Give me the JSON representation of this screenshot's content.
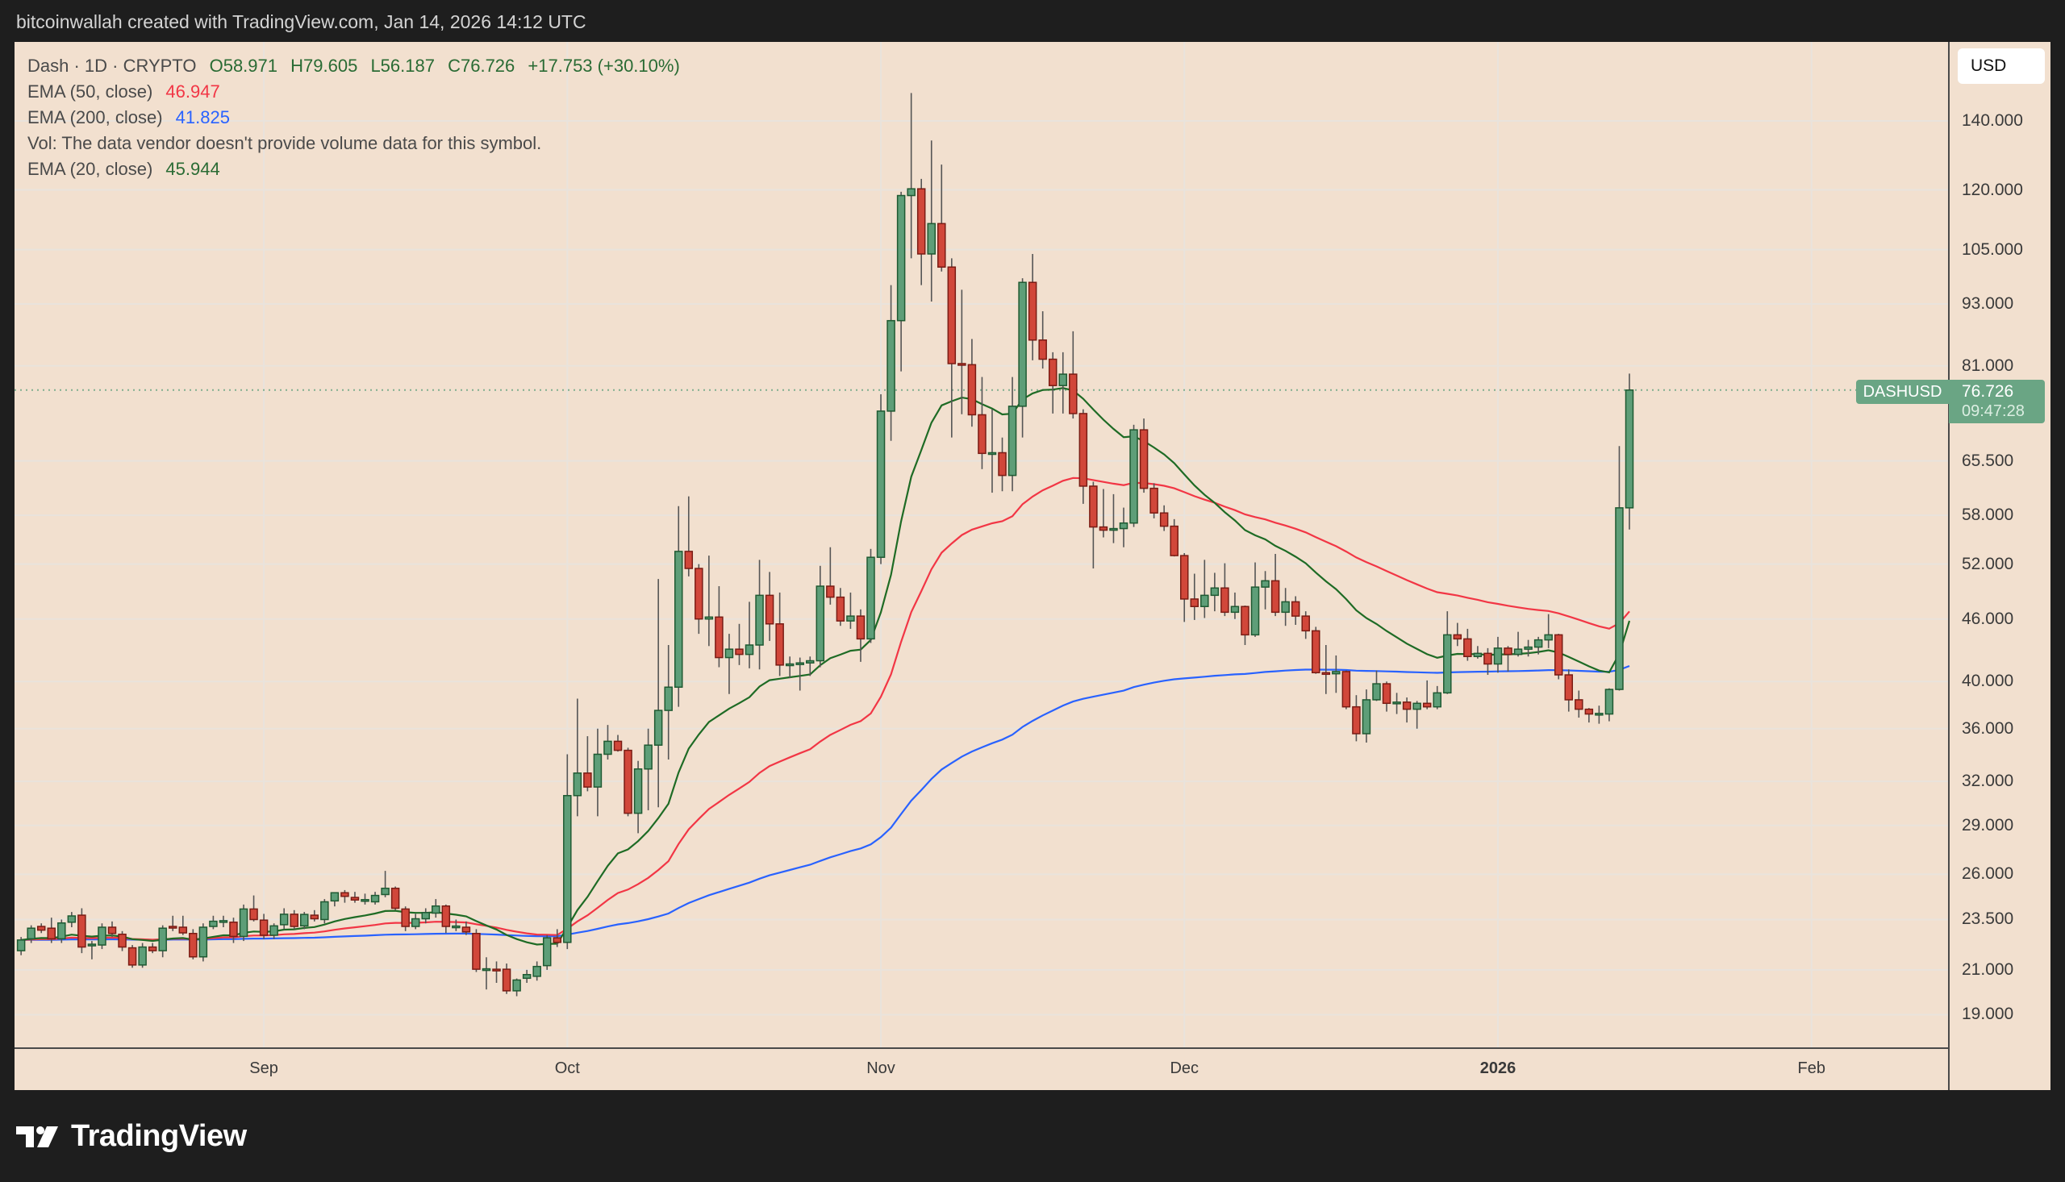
{
  "header": {
    "credit": "bitcoinwallah created with TradingView.com, Jan 14, 2026 14:12 UTC"
  },
  "legend": {
    "symbol": "Dash · 1D · CRYPTO",
    "open": "O58.971",
    "high": "H79.605",
    "low": "L56.187",
    "close": "C76.726",
    "change": "+17.753 (+30.10%)",
    "ema50_label": "EMA (50, close)",
    "ema50_value": "46.947",
    "ema200_label": "EMA (200, close)",
    "ema200_value": "41.825",
    "vol_note": "Vol: The data vendor doesn't provide volume data for this symbol.",
    "ema20_label": "EMA (20, close)",
    "ema20_value": "45.944"
  },
  "currency_button": "USD",
  "last_price": {
    "symbol": "DASHUSD",
    "price": "76.726",
    "countdown": "09:47:28",
    "value": 76.726,
    "color": "#6aa584"
  },
  "brand": {
    "logo_text": "TradingView"
  },
  "chart_data": {
    "type": "candlestick",
    "y_scale": "log",
    "ylim": [
      18,
      160
    ],
    "grid": true,
    "colors": {
      "up_body": "#5e9e78",
      "up_border": "#1f5a32",
      "down_body": "#d1473a",
      "down_border": "#7a1c14",
      "wick": "#555555",
      "background": "#f2e0cf"
    },
    "price_ticks": [
      "140.000",
      "120.000",
      "105.000",
      "93.000",
      "81.000",
      "65.500",
      "58.000",
      "52.000",
      "46.000",
      "40.000",
      "36.000",
      "32.000",
      "29.000",
      "26.000",
      "23.500",
      "21.000",
      "19.000"
    ],
    "time_ticks": [
      {
        "label": "Sep",
        "date": "2025-09-01",
        "bold": false
      },
      {
        "label": "Oct",
        "date": "2025-10-01",
        "bold": false
      },
      {
        "label": "Nov",
        "date": "2025-11-01",
        "bold": false
      },
      {
        "label": "Dec",
        "date": "2025-12-01",
        "bold": false
      },
      {
        "label": "2026",
        "date": "2026-01-01",
        "bold": true
      },
      {
        "label": "Feb",
        "date": "2026-02-01",
        "bold": false
      }
    ],
    "indicators": [
      {
        "name": "EMA (20, close)",
        "period": 20,
        "color": "#1e6b25",
        "last_value": 45.944
      },
      {
        "name": "EMA (50, close)",
        "period": 50,
        "color": "#f23645",
        "last_value": 46.947
      },
      {
        "name": "EMA (200, close)",
        "period": 200,
        "color": "#2962ff",
        "last_value": 41.825
      }
    ],
    "candles_columns": [
      "date",
      "open",
      "high",
      "low",
      "close"
    ],
    "candles": [
      [
        "2025-08-08",
        21.92,
        22.6,
        21.7,
        22.45
      ],
      [
        "2025-08-09",
        22.51,
        23.2,
        22.3,
        23.05
      ],
      [
        "2025-08-10",
        23.14,
        23.3,
        22.8,
        22.95
      ],
      [
        "2025-08-11",
        23.05,
        23.6,
        22.3,
        22.51
      ],
      [
        "2025-08-12",
        22.51,
        23.5,
        22.3,
        23.32
      ],
      [
        "2025-08-13",
        23.36,
        23.9,
        23.1,
        23.69
      ],
      [
        "2025-08-14",
        23.73,
        24.1,
        21.8,
        22.1
      ],
      [
        "2025-08-15",
        22.2,
        22.4,
        21.5,
        22.24
      ],
      [
        "2025-08-16",
        22.2,
        23.3,
        22.0,
        23.1
      ],
      [
        "2025-08-17",
        23.1,
        23.4,
        22.6,
        22.78
      ],
      [
        "2025-08-18",
        22.74,
        22.9,
        21.9,
        22.1
      ],
      [
        "2025-08-19",
        22.06,
        22.2,
        21.1,
        21.23
      ],
      [
        "2025-08-20",
        21.23,
        22.3,
        21.1,
        22.1
      ],
      [
        "2025-08-21",
        22.1,
        22.3,
        21.8,
        21.92
      ],
      [
        "2025-08-22",
        21.92,
        23.2,
        21.6,
        23.05
      ],
      [
        "2025-08-23",
        23.14,
        23.7,
        22.9,
        23.1
      ],
      [
        "2025-08-24",
        23.1,
        23.7,
        22.7,
        22.81
      ],
      [
        "2025-08-25",
        22.78,
        23.0,
        21.5,
        21.62
      ],
      [
        "2025-08-26",
        21.62,
        23.3,
        21.4,
        23.1
      ],
      [
        "2025-08-27",
        23.14,
        23.7,
        23.0,
        23.41
      ],
      [
        "2025-08-28",
        23.41,
        23.7,
        23.1,
        23.44
      ],
      [
        "2025-08-29",
        23.36,
        23.6,
        22.3,
        22.63
      ],
      [
        "2025-08-30",
        22.63,
        24.3,
        22.4,
        24.06
      ],
      [
        "2025-08-31",
        24.06,
        24.8,
        23.4,
        23.5
      ],
      [
        "2025-09-01",
        23.47,
        23.8,
        22.5,
        22.69
      ],
      [
        "2025-09-02",
        22.69,
        23.3,
        22.5,
        23.17
      ],
      [
        "2025-09-03",
        23.23,
        24.1,
        23.0,
        23.78
      ],
      [
        "2025-09-04",
        23.78,
        24.0,
        23.0,
        23.14
      ],
      [
        "2025-09-05",
        23.17,
        23.9,
        23.0,
        23.77
      ],
      [
        "2025-09-06",
        23.73,
        24.0,
        23.4,
        23.54
      ],
      [
        "2025-09-07",
        23.5,
        24.6,
        23.3,
        24.45
      ],
      [
        "2025-09-08",
        24.5,
        24.9,
        24.2,
        24.95
      ],
      [
        "2025-09-09",
        24.95,
        25.1,
        24.4,
        24.75
      ],
      [
        "2025-09-10",
        24.69,
        25.0,
        24.4,
        24.55
      ],
      [
        "2025-09-11",
        24.55,
        24.9,
        24.3,
        24.57
      ],
      [
        "2025-09-12",
        24.45,
        25.0,
        24.3,
        24.8
      ],
      [
        "2025-09-13",
        24.85,
        26.2,
        24.7,
        25.2
      ],
      [
        "2025-09-14",
        25.2,
        25.3,
        24.0,
        24.1
      ],
      [
        "2025-09-15",
        24.06,
        24.2,
        22.9,
        23.14
      ],
      [
        "2025-09-16",
        23.14,
        23.8,
        23.0,
        23.54
      ],
      [
        "2025-09-17",
        23.54,
        24.1,
        23.3,
        23.87
      ],
      [
        "2025-09-18",
        23.84,
        24.6,
        23.6,
        24.22
      ],
      [
        "2025-09-19",
        24.22,
        24.3,
        22.8,
        23.14
      ],
      [
        "2025-09-20",
        23.14,
        23.5,
        22.9,
        23.16
      ],
      [
        "2025-09-21",
        23.1,
        23.4,
        22.7,
        22.86
      ],
      [
        "2025-09-22",
        22.78,
        23.0,
        20.9,
        21.03
      ],
      [
        "2025-09-23",
        21.03,
        21.6,
        20.1,
        21.05
      ],
      [
        "2025-09-24",
        21.03,
        21.4,
        20.4,
        21.0
      ],
      [
        "2025-09-25",
        21.03,
        21.3,
        19.9,
        20.04
      ],
      [
        "2025-09-26",
        20.04,
        20.6,
        19.8,
        20.53
      ],
      [
        "2025-09-27",
        20.61,
        21.0,
        20.4,
        20.78
      ],
      [
        "2025-09-28",
        20.7,
        21.4,
        20.5,
        21.16
      ],
      [
        "2025-09-29",
        21.2,
        22.7,
        21.0,
        22.56
      ],
      [
        "2025-09-30",
        22.56,
        23.0,
        22.1,
        22.33
      ],
      [
        "2025-10-01",
        22.33,
        34.0,
        22.0,
        31.0
      ],
      [
        "2025-10-02",
        31.0,
        38.5,
        29.6,
        32.6
      ],
      [
        "2025-10-03",
        32.6,
        35.4,
        31.3,
        31.6
      ],
      [
        "2025-10-04",
        31.6,
        36.0,
        29.6,
        34.0
      ],
      [
        "2025-10-05",
        34.0,
        36.3,
        33.6,
        35.0
      ],
      [
        "2025-10-06",
        35.0,
        35.5,
        34.2,
        34.3
      ],
      [
        "2025-10-07",
        34.3,
        34.5,
        29.6,
        29.8
      ],
      [
        "2025-10-08",
        29.8,
        33.5,
        28.5,
        32.9
      ],
      [
        "2025-10-09",
        32.9,
        36.0,
        30.0,
        34.7
      ],
      [
        "2025-10-10",
        34.7,
        50.3,
        30.2,
        37.5
      ],
      [
        "2025-10-11",
        37.5,
        43.4,
        33.6,
        39.5
      ],
      [
        "2025-10-12",
        39.5,
        59.2,
        37.8,
        53.5
      ],
      [
        "2025-10-13",
        53.5,
        60.5,
        50.6,
        51.5
      ],
      [
        "2025-10-14",
        51.5,
        52.0,
        44.5,
        46.0
      ],
      [
        "2025-10-15",
        46.0,
        53.0,
        43.3,
        46.2
      ],
      [
        "2025-10-16",
        46.2,
        49.5,
        41.3,
        42.2
      ],
      [
        "2025-10-17",
        42.2,
        44.5,
        38.9,
        43.0
      ],
      [
        "2025-10-18",
        43.0,
        45.5,
        41.5,
        42.5
      ],
      [
        "2025-10-19",
        42.5,
        47.8,
        41.2,
        43.4
      ],
      [
        "2025-10-20",
        43.4,
        52.5,
        41.1,
        48.5
      ],
      [
        "2025-10-21",
        48.5,
        51.1,
        43.8,
        45.5
      ],
      [
        "2025-10-22",
        45.5,
        48.8,
        40.5,
        41.5
      ],
      [
        "2025-10-23",
        41.5,
        42.3,
        40.3,
        41.6
      ],
      [
        "2025-10-24",
        41.6,
        42.2,
        39.2,
        41.7
      ],
      [
        "2025-10-25",
        41.7,
        42.3,
        40.5,
        41.9
      ],
      [
        "2025-10-26",
        41.9,
        51.8,
        41.3,
        49.5
      ],
      [
        "2025-10-27",
        49.5,
        54.0,
        47.5,
        48.3
      ],
      [
        "2025-10-28",
        48.3,
        49.3,
        45.3,
        45.8
      ],
      [
        "2025-10-29",
        45.8,
        48.8,
        45.0,
        46.3
      ],
      [
        "2025-10-30",
        46.3,
        47.0,
        41.8,
        44.0
      ],
      [
        "2025-10-31",
        44.0,
        53.8,
        43.6,
        52.8
      ],
      [
        "2025-11-01",
        52.8,
        76.0,
        52.0,
        73.2
      ],
      [
        "2025-11-02",
        73.2,
        97.0,
        68.5,
        89.6
      ],
      [
        "2025-11-03",
        89.6,
        119.5,
        80.0,
        118.5
      ],
      [
        "2025-11-04",
        118.5,
        149.0,
        103.0,
        120.3
      ],
      [
        "2025-11-05",
        120.3,
        123.0,
        97.0,
        104.0
      ],
      [
        "2025-11-06",
        104.0,
        134.0,
        93.5,
        111.3
      ],
      [
        "2025-11-07",
        111.3,
        127.0,
        100.0,
        101.0
      ],
      [
        "2025-11-08",
        101.0,
        103.0,
        69.0,
        81.4
      ],
      [
        "2025-11-09",
        81.4,
        96.0,
        72.7,
        81.2
      ],
      [
        "2025-11-10",
        81.2,
        86.0,
        70.7,
        72.6
      ],
      [
        "2025-11-11",
        72.6,
        79.0,
        64.3,
        66.6
      ],
      [
        "2025-11-12",
        66.6,
        73.5,
        61.0,
        66.7
      ],
      [
        "2025-11-13",
        66.7,
        69.0,
        61.2,
        63.4
      ],
      [
        "2025-11-14",
        63.4,
        79.0,
        61.2,
        74.0
      ],
      [
        "2025-11-15",
        74.0,
        98.5,
        69.0,
        97.6
      ],
      [
        "2025-11-16",
        97.6,
        104.0,
        82.0,
        85.8
      ],
      [
        "2025-11-17",
        85.8,
        91.5,
        80.5,
        82.2
      ],
      [
        "2025-11-18",
        82.2,
        83.5,
        72.8,
        77.5
      ],
      [
        "2025-11-19",
        77.5,
        83.5,
        72.8,
        79.5
      ],
      [
        "2025-11-20",
        79.5,
        87.5,
        72.0,
        72.8
      ],
      [
        "2025-11-21",
        72.8,
        73.5,
        59.5,
        61.9
      ],
      [
        "2025-11-22",
        61.9,
        62.5,
        51.5,
        56.5
      ],
      [
        "2025-11-23",
        56.5,
        61.5,
        55.2,
        56.1
      ],
      [
        "2025-11-24",
        56.1,
        60.8,
        54.5,
        56.3
      ],
      [
        "2025-11-25",
        56.3,
        59.0,
        54.0,
        57.0
      ],
      [
        "2025-11-26",
        57.0,
        71.0,
        56.5,
        70.2
      ],
      [
        "2025-11-27",
        70.2,
        72.0,
        61.0,
        61.6
      ],
      [
        "2025-11-28",
        61.6,
        62.3,
        57.6,
        58.3
      ],
      [
        "2025-11-29",
        58.3,
        59.3,
        56.0,
        56.6
      ],
      [
        "2025-11-30",
        56.6,
        57.5,
        52.9,
        53.0
      ],
      [
        "2025-12-01",
        53.0,
        53.3,
        45.7,
        48.1
      ],
      [
        "2025-12-02",
        48.1,
        50.9,
        45.9,
        47.3
      ],
      [
        "2025-12-03",
        47.3,
        52.5,
        46.1,
        48.5
      ],
      [
        "2025-12-04",
        48.5,
        51.0,
        46.8,
        49.3
      ],
      [
        "2025-12-05",
        49.3,
        52.1,
        46.3,
        46.7
      ],
      [
        "2025-12-06",
        46.7,
        48.8,
        46.0,
        47.3
      ],
      [
        "2025-12-07",
        47.3,
        47.4,
        43.4,
        44.4
      ],
      [
        "2025-12-08",
        44.4,
        52.2,
        44.2,
        49.4
      ],
      [
        "2025-12-09",
        49.4,
        51.2,
        47.0,
        50.1
      ],
      [
        "2025-12-10",
        50.1,
        53.2,
        46.3,
        46.7
      ],
      [
        "2025-12-11",
        46.7,
        49.3,
        45.3,
        47.8
      ],
      [
        "2025-12-12",
        47.8,
        48.4,
        45.4,
        46.3
      ],
      [
        "2025-12-13",
        46.3,
        46.8,
        44.0,
        44.8
      ],
      [
        "2025-12-14",
        44.8,
        45.2,
        40.7,
        40.8
      ],
      [
        "2025-12-15",
        40.8,
        43.4,
        38.9,
        40.7
      ],
      [
        "2025-12-16",
        40.7,
        42.4,
        39.0,
        40.9
      ],
      [
        "2025-12-17",
        40.9,
        41.0,
        37.6,
        37.8
      ],
      [
        "2025-12-18",
        37.8,
        38.8,
        35.0,
        35.6
      ],
      [
        "2025-12-19",
        35.6,
        39.3,
        34.9,
        38.4
      ],
      [
        "2025-12-20",
        38.4,
        41.0,
        38.3,
        39.8
      ],
      [
        "2025-12-21",
        39.8,
        40.0,
        37.4,
        38.1
      ],
      [
        "2025-12-22",
        38.1,
        39.0,
        37.2,
        38.2
      ],
      [
        "2025-12-23",
        38.2,
        38.6,
        36.5,
        37.6
      ],
      [
        "2025-12-24",
        37.6,
        38.3,
        36.0,
        38.1
      ],
      [
        "2025-12-25",
        38.1,
        40.1,
        37.6,
        37.8
      ],
      [
        "2025-12-26",
        37.8,
        39.6,
        37.6,
        39.0
      ],
      [
        "2025-12-27",
        39.0,
        46.8,
        38.9,
        44.4
      ],
      [
        "2025-12-28",
        44.4,
        45.6,
        43.3,
        44.0
      ],
      [
        "2025-12-29",
        44.0,
        45.0,
        41.9,
        42.3
      ],
      [
        "2025-12-30",
        42.3,
        43.3,
        42.1,
        42.6
      ],
      [
        "2025-12-31",
        42.6,
        43.1,
        40.6,
        41.6
      ],
      [
        "2026-01-01",
        41.6,
        44.2,
        40.8,
        43.1
      ],
      [
        "2026-01-02",
        43.1,
        43.3,
        40.9,
        42.5
      ],
      [
        "2026-01-03",
        42.5,
        44.7,
        42.3,
        43.0
      ],
      [
        "2026-01-04",
        43.0,
        43.9,
        42.3,
        43.2
      ],
      [
        "2026-01-05",
        43.2,
        44.2,
        42.5,
        43.9
      ],
      [
        "2026-01-06",
        43.9,
        46.5,
        43.1,
        44.4
      ],
      [
        "2026-01-07",
        44.4,
        44.5,
        40.2,
        40.6
      ],
      [
        "2026-01-08",
        40.6,
        41.1,
        37.4,
        38.4
      ],
      [
        "2026-01-09",
        38.4,
        39.2,
        36.9,
        37.6
      ],
      [
        "2026-01-10",
        37.6,
        37.7,
        36.5,
        37.2
      ],
      [
        "2026-01-11",
        37.2,
        37.9,
        36.4,
        37.25
      ],
      [
        "2026-01-12",
        37.2,
        39.4,
        36.6,
        39.3
      ],
      [
        "2026-01-13",
        39.3,
        67.7,
        39.2,
        58.971
      ],
      [
        "2026-01-14",
        58.971,
        79.605,
        56.187,
        76.726
      ]
    ]
  }
}
